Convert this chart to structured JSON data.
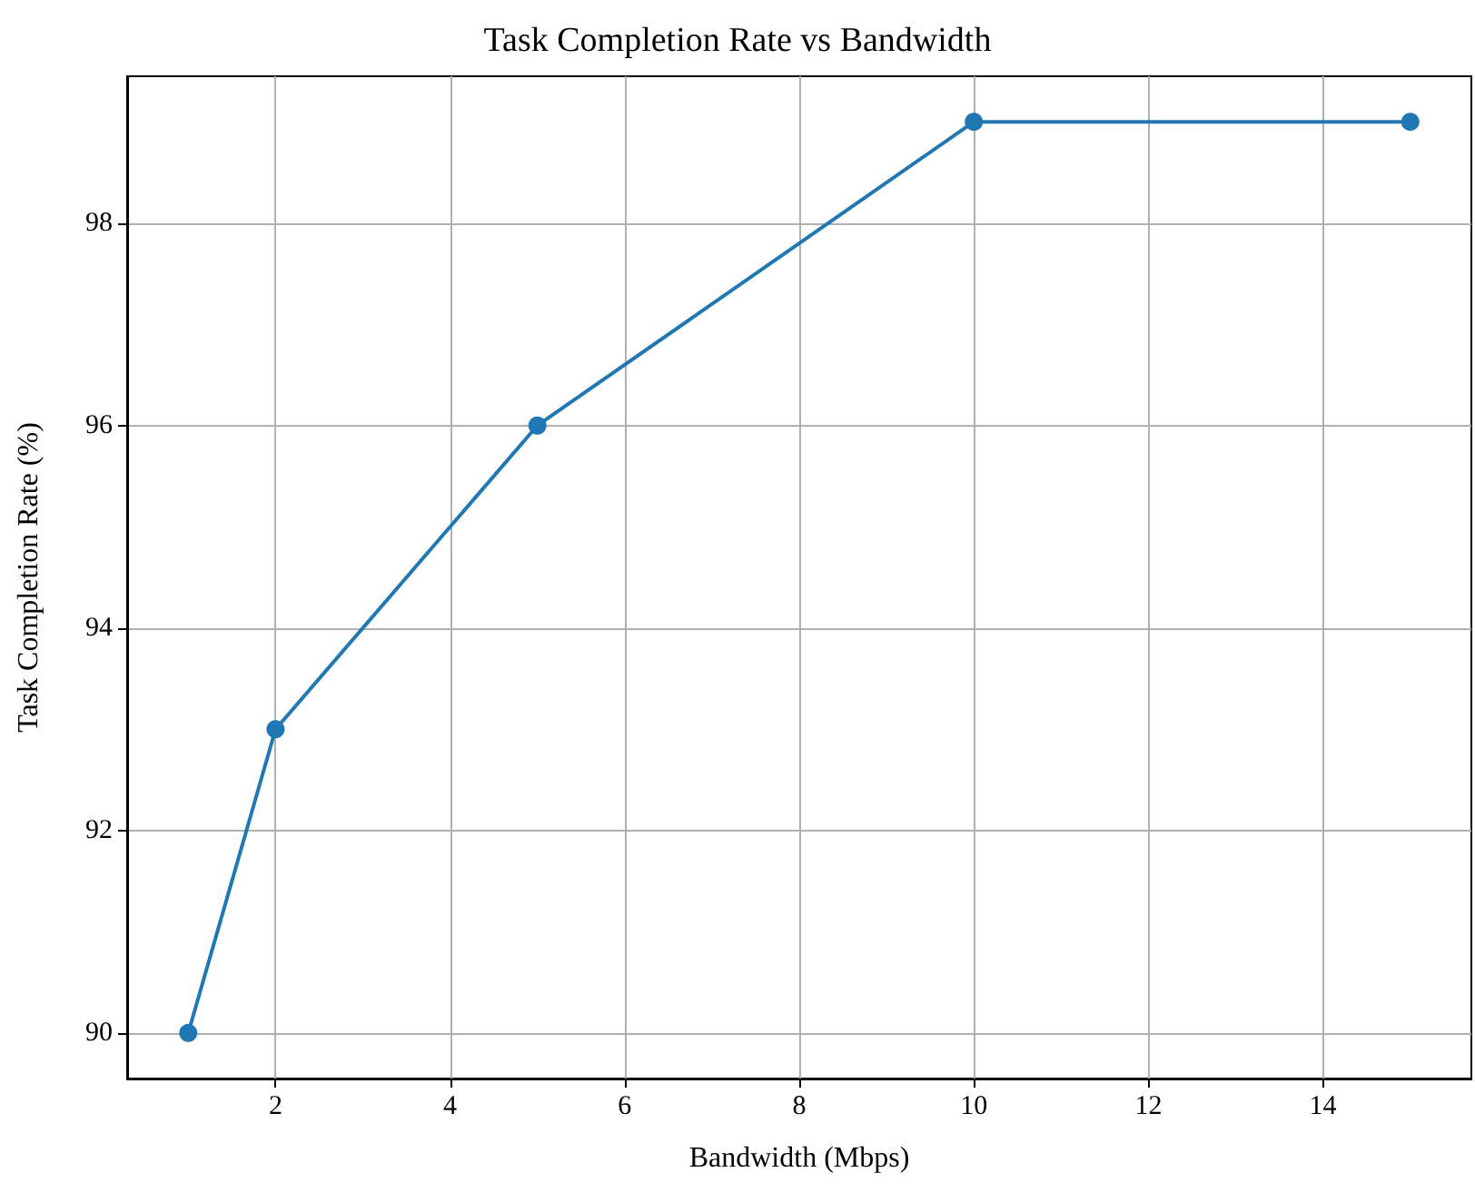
{
  "chart_data": {
    "type": "line",
    "title": "Task Completion Rate vs Bandwidth",
    "xlabel": "Bandwidth (Mbps)",
    "ylabel": "Task Completion Rate (%)",
    "x": [
      1,
      2,
      5,
      10,
      15
    ],
    "series": [
      {
        "color": "#1f77b4",
        "values": [
          90,
          93,
          96,
          99,
          99
        ]
      }
    ],
    "xlim": [
      0.3,
      15.7
    ],
    "xticks": [
      2,
      4,
      6,
      8,
      10,
      12,
      14
    ],
    "ylim": [
      89.55,
      99.45
    ],
    "yticks": [
      90,
      92,
      94,
      96,
      98
    ],
    "grid": true,
    "marker": "circle",
    "line_style": "solid"
  }
}
